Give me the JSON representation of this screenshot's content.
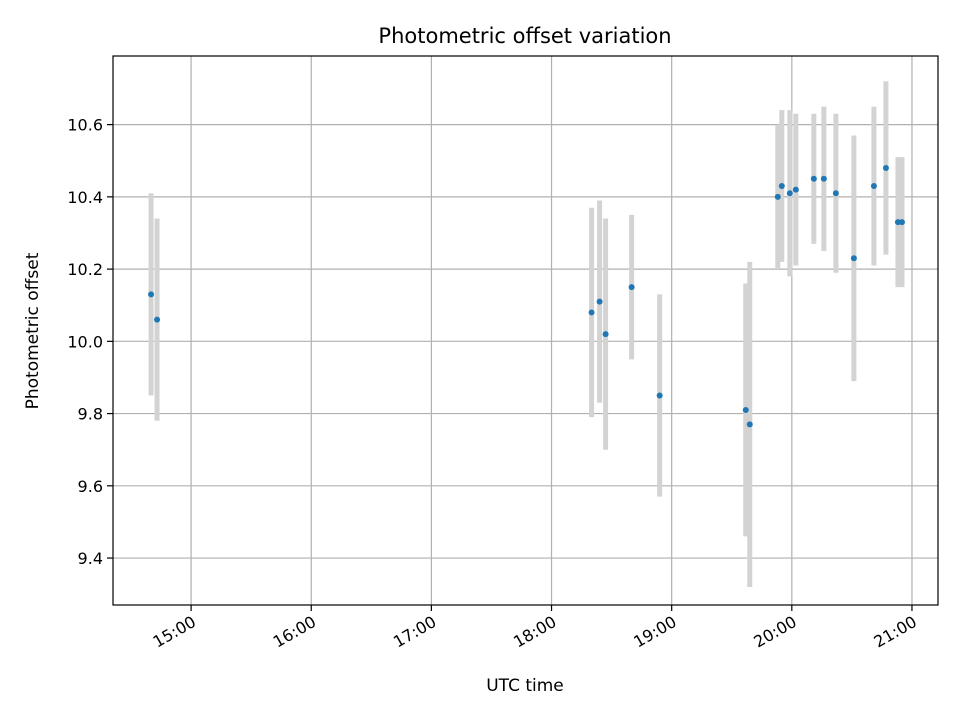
{
  "chart_data": {
    "type": "scatter",
    "title": "Photometric offset variation",
    "xlabel": "UTC time",
    "ylabel": "Photometric offset",
    "x_axis": "time",
    "xlim": [
      "14:21",
      "21:13"
    ],
    "ylim": [
      9.27,
      10.79
    ],
    "grid": true,
    "x_ticks": [
      "15:00",
      "16:00",
      "17:00",
      "18:00",
      "19:00",
      "20:00",
      "21:00"
    ],
    "y_ticks": [
      "9.4",
      "9.6",
      "9.8",
      "10.0",
      "10.2",
      "10.4",
      "10.6"
    ],
    "colors": {
      "point": "#1f77b4",
      "errorbar": "#d3d3d3",
      "grid": "#b0b0b0"
    },
    "points": [
      {
        "x": "14:40",
        "y": 10.13,
        "err": 0.28
      },
      {
        "x": "14:43",
        "y": 10.06,
        "err": 0.28
      },
      {
        "x": "18:20",
        "y": 10.08,
        "err": 0.29
      },
      {
        "x": "18:24",
        "y": 10.11,
        "err": 0.28
      },
      {
        "x": "18:27",
        "y": 10.02,
        "err": 0.32
      },
      {
        "x": "18:40",
        "y": 10.15,
        "err": 0.2
      },
      {
        "x": "18:54",
        "y": 9.85,
        "err": 0.28
      },
      {
        "x": "19:37",
        "y": 9.81,
        "err": 0.35
      },
      {
        "x": "19:39",
        "y": 9.77,
        "err": 0.45
      },
      {
        "x": "19:53",
        "y": 10.4,
        "err": 0.2
      },
      {
        "x": "19:55",
        "y": 10.43,
        "err": 0.21
      },
      {
        "x": "19:59",
        "y": 10.41,
        "err": 0.23
      },
      {
        "x": "20:02",
        "y": 10.42,
        "err": 0.21
      },
      {
        "x": "20:11",
        "y": 10.45,
        "err": 0.18
      },
      {
        "x": "20:16",
        "y": 10.45,
        "err": 0.2
      },
      {
        "x": "20:22",
        "y": 10.41,
        "err": 0.22
      },
      {
        "x": "20:31",
        "y": 10.23,
        "err": 0.34
      },
      {
        "x": "20:41",
        "y": 10.43,
        "err": 0.22
      },
      {
        "x": "20:47",
        "y": 10.48,
        "err": 0.24
      },
      {
        "x": "20:53",
        "y": 10.33,
        "err": 0.18
      },
      {
        "x": "20:55",
        "y": 10.33,
        "err": 0.18
      }
    ]
  }
}
